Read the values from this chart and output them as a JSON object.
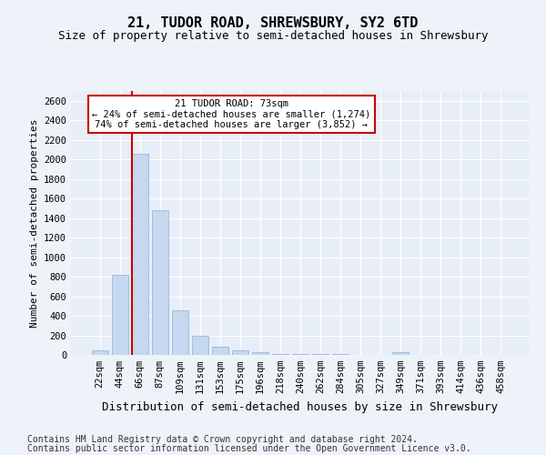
{
  "title": "21, TUDOR ROAD, SHREWSBURY, SY2 6TD",
  "subtitle": "Size of property relative to semi-detached houses in Shrewsbury",
  "xlabel": "Distribution of semi-detached houses by size in Shrewsbury",
  "ylabel": "Number of semi-detached properties",
  "categories": [
    "22sqm",
    "44sqm",
    "66sqm",
    "87sqm",
    "109sqm",
    "131sqm",
    "153sqm",
    "175sqm",
    "196sqm",
    "218sqm",
    "240sqm",
    "262sqm",
    "284sqm",
    "305sqm",
    "327sqm",
    "349sqm",
    "371sqm",
    "393sqm",
    "414sqm",
    "436sqm",
    "458sqm"
  ],
  "values": [
    50,
    820,
    2060,
    1480,
    460,
    195,
    80,
    45,
    25,
    10,
    5,
    5,
    5,
    0,
    0,
    30,
    0,
    0,
    0,
    0,
    0
  ],
  "bar_color": "#c5d8f0",
  "bar_edge_color": "#8ab0d8",
  "vline_x_index": 2,
  "vline_color": "#cc0000",
  "annotation_text": "21 TUDOR ROAD: 73sqm\n← 24% of semi-detached houses are smaller (1,274)\n74% of semi-detached houses are larger (3,852) →",
  "annotation_box_facecolor": "#ffffff",
  "annotation_box_edgecolor": "#cc0000",
  "ylim": [
    0,
    2700
  ],
  "yticks": [
    0,
    200,
    400,
    600,
    800,
    1000,
    1200,
    1400,
    1600,
    1800,
    2000,
    2200,
    2400,
    2600
  ],
  "background_color": "#eef3fa",
  "plot_bg_color": "#e8eef8",
  "footer_line1": "Contains HM Land Registry data © Crown copyright and database right 2024.",
  "footer_line2": "Contains public sector information licensed under the Open Government Licence v3.0.",
  "title_fontsize": 11,
  "subtitle_fontsize": 9,
  "xlabel_fontsize": 9,
  "ylabel_fontsize": 8,
  "tick_fontsize": 7.5,
  "footer_fontsize": 7
}
